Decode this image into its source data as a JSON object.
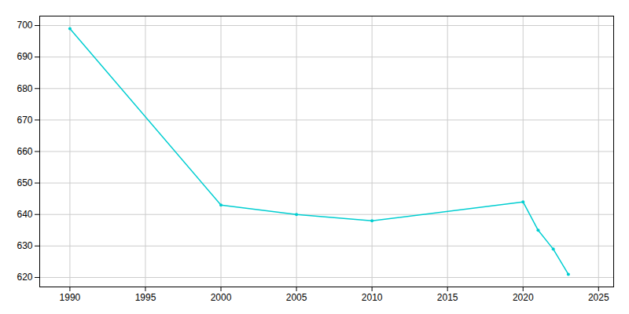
{
  "chart_data": {
    "type": "line",
    "x": [
      1990,
      2000,
      2005,
      2010,
      2020,
      2021,
      2022,
      2023
    ],
    "values": [
      699,
      643,
      640,
      638,
      644,
      635,
      629,
      621
    ],
    "color": "#00CED1",
    "marker": "circle",
    "xlim": [
      1988,
      2026
    ],
    "ylim": [
      617,
      703
    ],
    "xticks": [
      1990,
      1995,
      2000,
      2005,
      2010,
      2015,
      2020,
      2025
    ],
    "yticks": [
      620,
      630,
      640,
      650,
      660,
      670,
      680,
      690,
      700
    ],
    "grid": true
  }
}
